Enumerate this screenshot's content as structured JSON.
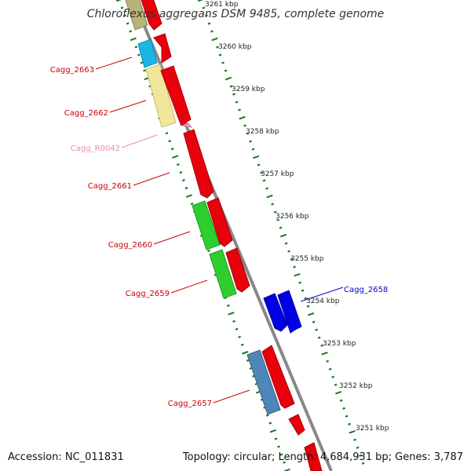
{
  "title": "Chloroflexus aggregans DSM 9485, complete genome",
  "accession_text": "Accession: NC_011831",
  "topology_text": "Topology: circular; Length: 4,684,931 bp; Genes: 3,787",
  "colors": {
    "forward_gene": "#e8000a",
    "label_red": "#cc0000",
    "label_blue": "#0000cc",
    "label_pink": "#ee88bb",
    "backbone": "#888888",
    "ticks": "#1a7a1a"
  },
  "scale_labels": [
    "3261 kbp",
    "3260 kbp",
    "3259 kbp",
    "3258 kbp",
    "3257 kbp",
    "3256 kbp",
    "3255 kbp",
    "3254 kbp",
    "3253 kbp",
    "3252 kbp",
    "3251 kbp"
  ],
  "gene_labels": [
    {
      "text": "Cagg_2663",
      "color": "#cc0000"
    },
    {
      "text": "Cagg_2662",
      "color": "#cc0000"
    },
    {
      "text": "Cagg_R0042",
      "color": "#ee88bb"
    },
    {
      "text": "Cagg_2661",
      "color": "#cc0000"
    },
    {
      "text": "Cagg_2660",
      "color": "#cc0000"
    },
    {
      "text": "Cagg_2659",
      "color": "#cc0000"
    },
    {
      "text": "Cagg_2658",
      "color": "#0000cc"
    },
    {
      "text": "Cagg_2657",
      "color": "#cc0000"
    }
  ]
}
